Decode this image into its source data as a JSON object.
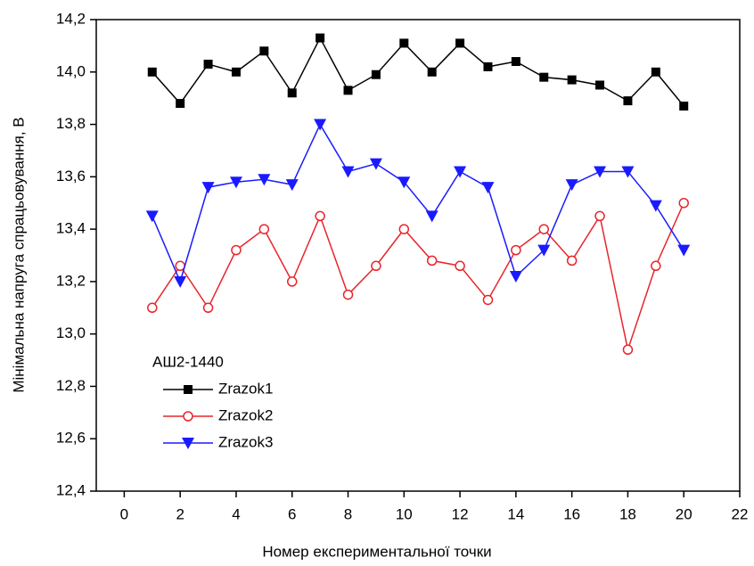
{
  "chart_data": {
    "type": "line",
    "xlabel": "Номер експериментальної точки",
    "ylabel": "Мінімальна напруга спрацьовування, В",
    "x": [
      1,
      2,
      3,
      4,
      5,
      6,
      7,
      8,
      9,
      10,
      11,
      12,
      13,
      14,
      15,
      16,
      17,
      18,
      19,
      20
    ],
    "xlim": [
      -1,
      22
    ],
    "xticks": [
      0,
      2,
      4,
      6,
      8,
      10,
      12,
      14,
      16,
      18,
      20,
      22
    ],
    "ylim": [
      12.4,
      14.2
    ],
    "yticks": [
      {
        "value": 12.4,
        "label": "12,4"
      },
      {
        "value": 12.6,
        "label": "12,6"
      },
      {
        "value": 12.8,
        "label": "12,8"
      },
      {
        "value": 13.0,
        "label": "13,0"
      },
      {
        "value": 13.2,
        "label": "13,2"
      },
      {
        "value": 13.4,
        "label": "13,4"
      },
      {
        "value": 13.6,
        "label": "13,6"
      },
      {
        "value": 13.8,
        "label": "13,8"
      },
      {
        "value": 14.0,
        "label": "14,0"
      },
      {
        "value": 14.2,
        "label": "14,2"
      }
    ],
    "legend": "lower left",
    "legend_title": "АШ2-1440",
    "series": [
      {
        "name": "Zrazok1",
        "color": "#000000",
        "marker": "square",
        "values": [
          14.0,
          13.88,
          14.03,
          14.0,
          14.08,
          13.92,
          14.13,
          13.93,
          13.99,
          14.11,
          14.0,
          14.11,
          14.02,
          14.04,
          13.98,
          13.97,
          13.95,
          13.89,
          14.0,
          13.87
        ]
      },
      {
        "name": "Zrazok2",
        "color": "#e8252a",
        "marker": "open-circle",
        "values": [
          13.1,
          13.26,
          13.1,
          13.32,
          13.4,
          13.2,
          13.45,
          13.15,
          13.26,
          13.4,
          13.28,
          13.26,
          13.13,
          13.32,
          13.4,
          13.28,
          13.45,
          12.94,
          13.26,
          13.5
        ]
      },
      {
        "name": "Zrazok3",
        "color": "#1a1aff",
        "marker": "down-triangle",
        "values": [
          13.45,
          13.2,
          13.56,
          13.58,
          13.59,
          13.57,
          13.8,
          13.62,
          13.65,
          13.58,
          13.45,
          13.62,
          13.56,
          13.22,
          13.32,
          13.57,
          13.62,
          13.62,
          13.49,
          13.32
        ]
      }
    ]
  }
}
